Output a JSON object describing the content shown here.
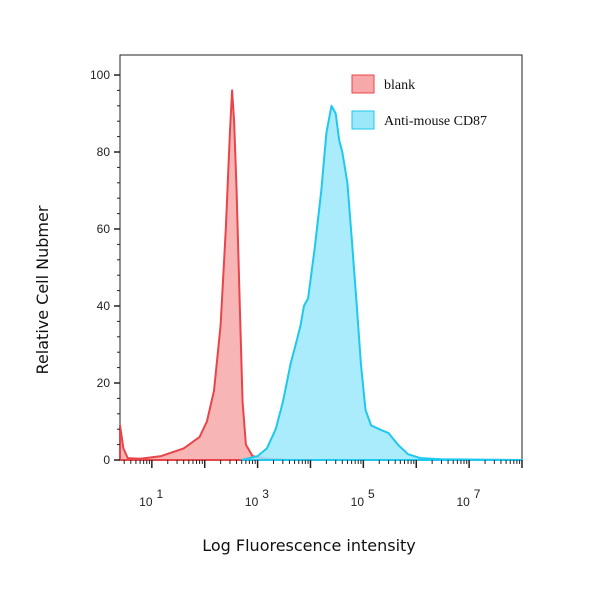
{
  "chart_data": {
    "type": "area",
    "xlabel": "Log Fluorescence intensity",
    "ylabel": "Relative Cell Nubmer",
    "x_scale": "log",
    "xlim": [
      2.5,
      100000000
    ],
    "ylim": [
      0,
      100
    ],
    "x_ticks": [
      {
        "value": 10,
        "base": "10",
        "exp": "1"
      },
      {
        "value": 1000,
        "base": "10",
        "exp": "3"
      },
      {
        "value": 100000,
        "base": "10",
        "exp": "5"
      },
      {
        "value": 10000000,
        "base": "10",
        "exp": "7"
      }
    ],
    "y_ticks": [
      "0",
      "20",
      "40",
      "60",
      "80",
      "100"
    ],
    "legend_position": "top-right",
    "series": [
      {
        "name": "blank",
        "fill": "#f7a8a8",
        "stroke": "#e8454a",
        "points": [
          [
            2.5,
            9
          ],
          [
            2.9,
            3
          ],
          [
            3.5,
            0.5
          ],
          [
            6,
            0.3
          ],
          [
            15,
            1
          ],
          [
            40,
            3
          ],
          [
            80,
            6
          ],
          [
            110,
            10
          ],
          [
            150,
            18
          ],
          [
            200,
            35
          ],
          [
            250,
            60
          ],
          [
            300,
            85
          ],
          [
            330,
            96
          ],
          [
            360,
            88
          ],
          [
            400,
            70
          ],
          [
            460,
            40
          ],
          [
            520,
            15
          ],
          [
            600,
            4
          ],
          [
            800,
            1
          ],
          [
            1500,
            0.3
          ],
          [
            5000,
            0
          ]
        ]
      },
      {
        "name": "Anti-mouse CD87",
        "fill": "#9be8fb",
        "stroke": "#1ec8ee",
        "points": [
          [
            500,
            0
          ],
          [
            1000,
            1
          ],
          [
            1500,
            3
          ],
          [
            2200,
            8
          ],
          [
            3000,
            15
          ],
          [
            4200,
            25
          ],
          [
            5500,
            31
          ],
          [
            6500,
            35
          ],
          [
            7500,
            40
          ],
          [
            9000,
            42
          ],
          [
            12000,
            55
          ],
          [
            16000,
            70
          ],
          [
            20000,
            85
          ],
          [
            25000,
            92
          ],
          [
            30000,
            90
          ],
          [
            35000,
            83
          ],
          [
            40000,
            80
          ],
          [
            50000,
            72
          ],
          [
            60000,
            58
          ],
          [
            75000,
            40
          ],
          [
            90000,
            25
          ],
          [
            110000,
            13
          ],
          [
            140000,
            9
          ],
          [
            200000,
            8
          ],
          [
            300000,
            7
          ],
          [
            450000,
            4
          ],
          [
            700000,
            1.5
          ],
          [
            1200000,
            0.5
          ],
          [
            3000000,
            0.2
          ],
          [
            100000000,
            0
          ]
        ]
      }
    ]
  }
}
